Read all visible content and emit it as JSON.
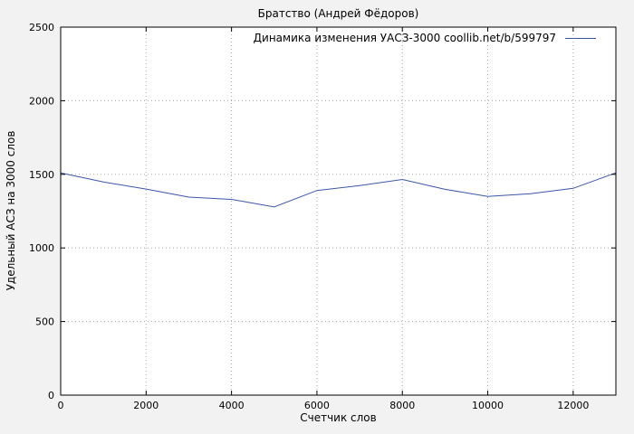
{
  "title": "Братство (Андрей Фёдоров)",
  "legend": {
    "label": "Динамика изменения УАСЗ-3000 coollib.net/b/599797"
  },
  "axes": {
    "xlabel": "Счетчик слов",
    "ylabel": "Удельный АСЗ на 3000 слов"
  },
  "colors": {
    "line": "#3b56a8",
    "grid": "#a8a8a8",
    "border": "#000000",
    "plot_background": "#ffffff",
    "figure_background": "#f2f2f2"
  },
  "chart_data": {
    "type": "line",
    "title": "Братство (Андрей Фёдоров)",
    "xlabel": "Счетчик слов",
    "ylabel": "Удельный АСЗ на 3000 слов",
    "x": [
      0,
      1000,
      2000,
      3000,
      4000,
      5000,
      6000,
      7000,
      8000,
      9000,
      10000,
      11000,
      12000,
      13000
    ],
    "series": [
      {
        "name": "Динамика изменения УАСЗ-3000 coollib.net/b/599797",
        "values": [
          1510,
          1448,
          1400,
          1345,
          1330,
          1278,
          1390,
          1424,
          1465,
          1398,
          1350,
          1368,
          1405,
          1510
        ]
      }
    ],
    "xlim": [
      0,
      13000
    ],
    "ylim": [
      0,
      2500
    ],
    "xticks": [
      0,
      2000,
      4000,
      6000,
      8000,
      10000,
      12000
    ],
    "yticks": [
      0,
      500,
      1000,
      1500,
      2000,
      2500
    ],
    "grid": true,
    "grid_style": "dotted",
    "legend_position": "top-right-inside"
  }
}
